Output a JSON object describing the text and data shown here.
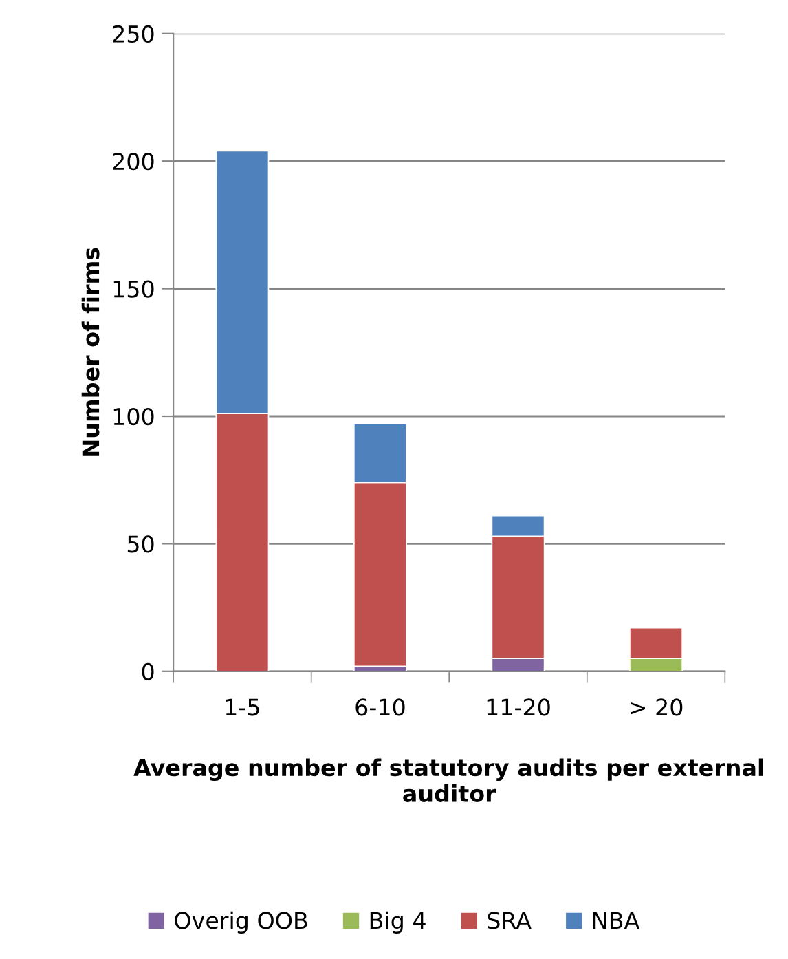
{
  "chart_data": {
    "type": "bar",
    "stacked": true,
    "xlabel": "Average number of statutory audits per external auditor",
    "ylabel": "Number of firms",
    "categories": [
      "1-5",
      "6-10",
      "11-20",
      "> 20"
    ],
    "series": [
      {
        "name": "Overig OOB",
        "color": "#8064a2",
        "values": [
          0,
          2,
          5,
          0
        ]
      },
      {
        "name": "Big 4",
        "color": "#9bbb59",
        "values": [
          0,
          0,
          0,
          5
        ]
      },
      {
        "name": "SRA",
        "color": "#c0504d",
        "values": [
          101,
          72,
          48,
          12
        ]
      },
      {
        "name": "NBA",
        "color": "#4f81bd",
        "values": [
          103,
          23,
          8,
          0
        ]
      }
    ],
    "ylim": [
      0,
      250
    ],
    "yticks": [
      0,
      50,
      100,
      150,
      200,
      250
    ],
    "grid": "y",
    "legend": "bottom"
  }
}
